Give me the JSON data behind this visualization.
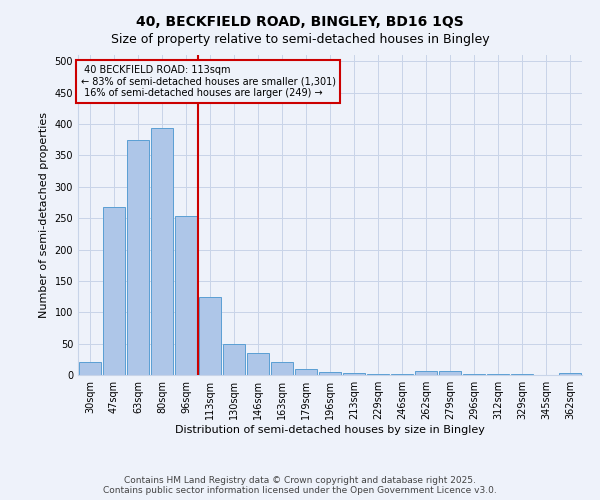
{
  "title": "40, BECKFIELD ROAD, BINGLEY, BD16 1QS",
  "subtitle": "Size of property relative to semi-detached houses in Bingley",
  "xlabel": "Distribution of semi-detached houses by size in Bingley",
  "ylabel": "Number of semi-detached properties",
  "categories": [
    "30sqm",
    "47sqm",
    "63sqm",
    "80sqm",
    "96sqm",
    "113sqm",
    "130sqm",
    "146sqm",
    "163sqm",
    "179sqm",
    "196sqm",
    "213sqm",
    "229sqm",
    "246sqm",
    "262sqm",
    "279sqm",
    "296sqm",
    "312sqm",
    "329sqm",
    "345sqm",
    "362sqm"
  ],
  "values": [
    20,
    268,
    375,
    393,
    253,
    125,
    50,
    35,
    20,
    9,
    5,
    3,
    2,
    1,
    6,
    6,
    2,
    1,
    1,
    0,
    3
  ],
  "bar_color": "#aec6e8",
  "bar_edge_color": "#5a9fd4",
  "property_line_idx": 5,
  "property_line_label": "40 BECKFIELD ROAD: 113sqm",
  "pct_smaller": "83%",
  "pct_smaller_count": "1,301",
  "pct_larger": "16%",
  "pct_larger_count": "249",
  "annotation_box_color": "#cc0000",
  "vline_color": "#cc0000",
  "ylim": [
    0,
    510
  ],
  "yticks": [
    0,
    50,
    100,
    150,
    200,
    250,
    300,
    350,
    400,
    450,
    500
  ],
  "footer_line1": "Contains HM Land Registry data © Crown copyright and database right 2025.",
  "footer_line2": "Contains public sector information licensed under the Open Government Licence v3.0.",
  "bg_color": "#eef2fa",
  "grid_color": "#c8d4e8",
  "title_fontsize": 10,
  "subtitle_fontsize": 9,
  "axis_label_fontsize": 8,
  "tick_fontsize": 7,
  "footer_fontsize": 6.5,
  "annot_fontsize": 7
}
